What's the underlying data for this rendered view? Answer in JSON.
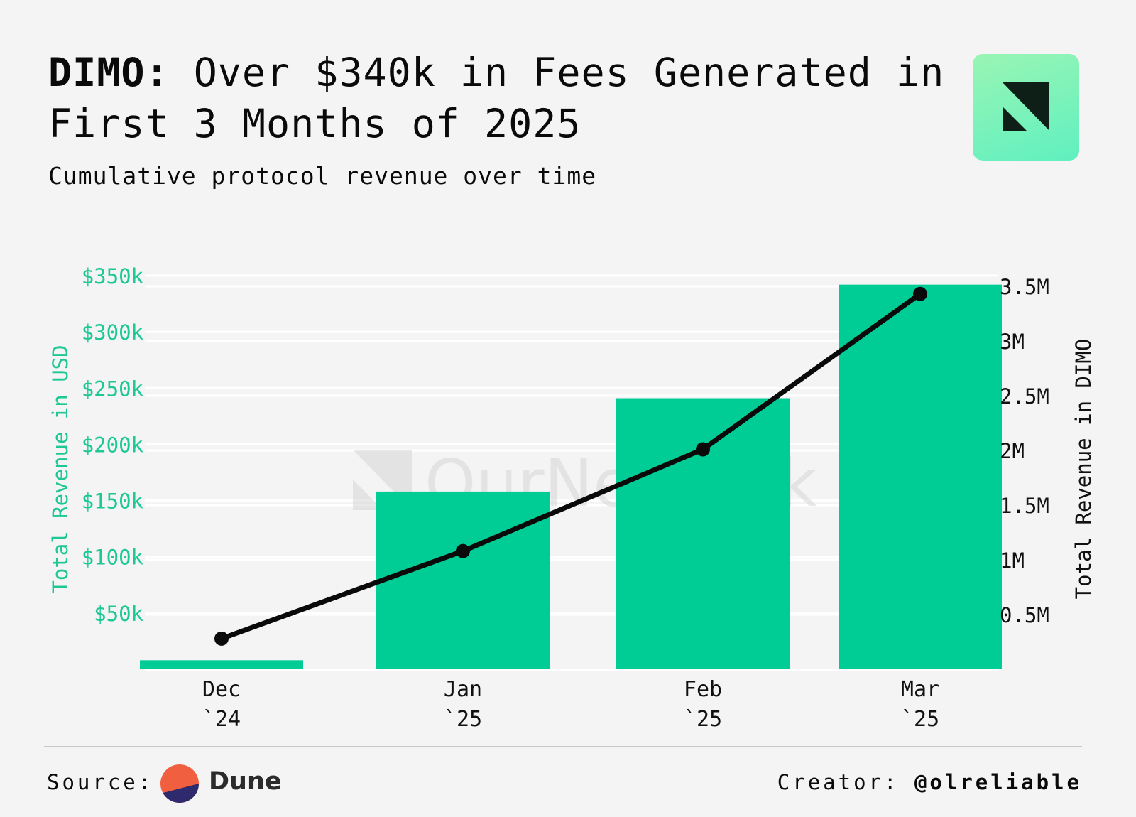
{
  "header": {
    "title_lead": "DIMO:",
    "title_rest": " Over $340k in Fees Generated in First 3 Months of 2025",
    "subtitle": "Cumulative protocol revenue over time"
  },
  "watermark": "OurNetwork",
  "footer": {
    "source_label": "Source:",
    "source_name": "Dune",
    "creator_label": "Creator:",
    "creator_handle": "@olreliable"
  },
  "colors": {
    "background": "#f4f4f4",
    "bar": "#00cc95",
    "line": "#0a0a0a",
    "left_axis": "#1ec895",
    "logo_gradient_top": "#9af5b4",
    "logo_gradient_bottom": "#5ff0c0",
    "dune_orange": "#f06040",
    "dune_navy": "#2e2a6e"
  },
  "chart_data": {
    "type": "bar",
    "categories": [
      [
        "Dec",
        "`24"
      ],
      [
        "Jan",
        "`25"
      ],
      [
        "Feb",
        "`25"
      ],
      [
        "Mar",
        "`25"
      ]
    ],
    "series": [
      {
        "type": "bar",
        "axis": "left",
        "values": [
          8000,
          158000,
          241000,
          342000
        ]
      },
      {
        "type": "line",
        "axis": "right",
        "values": [
          280000,
          1080000,
          2010000,
          3430000
        ]
      }
    ],
    "ylabel": "Total Revenue in USD",
    "y2label": "Total Revenue in DIMO",
    "ylim": [
      0,
      350000
    ],
    "y2lim": [
      0,
      3500000
    ],
    "yticks": [
      50000,
      100000,
      150000,
      200000,
      250000,
      300000,
      350000
    ],
    "ytick_labels": [
      "$50k",
      "$100k",
      "$150k",
      "$200k",
      "$250k",
      "$300k",
      "$350k"
    ],
    "y2ticks": [
      500000,
      1000000,
      1500000,
      2000000,
      2500000,
      3000000,
      3500000
    ],
    "y2tick_labels": [
      "0.5M",
      "1M",
      "1.5M",
      "2M",
      "2.5M",
      "3M",
      "3.5M"
    ],
    "grid": true
  }
}
